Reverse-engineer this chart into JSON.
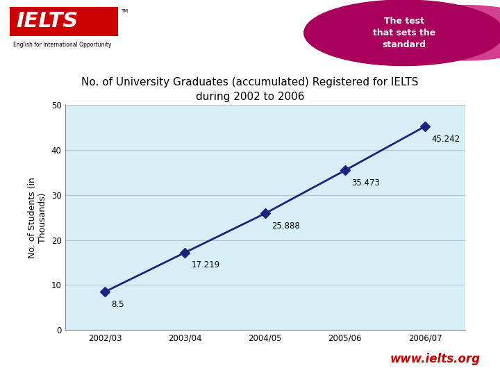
{
  "title_line1": "No. of University Graduates (accumulated) Registered for IELTS",
  "title_line2": "during 2002 to 2006",
  "ylabel": "No. of Students (in\nThousands)",
  "x_labels": [
    "2002/03",
    "2003/04",
    "2004/05",
    "2005/06",
    "2006/07"
  ],
  "x_values": [
    0,
    1,
    2,
    3,
    4
  ],
  "y_values": [
    8.5,
    17.219,
    25.888,
    35.473,
    45.242
  ],
  "y_labels": [
    "8.5",
    "17.219",
    "25.888",
    "35.473",
    "45.242"
  ],
  "ylim": [
    0,
    50
  ],
  "yticks": [
    0,
    10,
    20,
    30,
    40,
    50
  ],
  "line_color": "#1a237e",
  "marker_color": "#1a237e",
  "plot_bg_color": "#d6eef5",
  "outer_bg_color": "#ffffff",
  "title_fontsize": 11,
  "axis_label_fontsize": 9,
  "tick_fontsize": 8.5,
  "annotation_fontsize": 8.5,
  "grid_color": "#b0c8d0",
  "www_text": "www.ielts.org",
  "www_color": "#cc0000",
  "ielts_red": "#cc0000",
  "circle_dark": "#a8005a",
  "circle_light": "#d44090"
}
